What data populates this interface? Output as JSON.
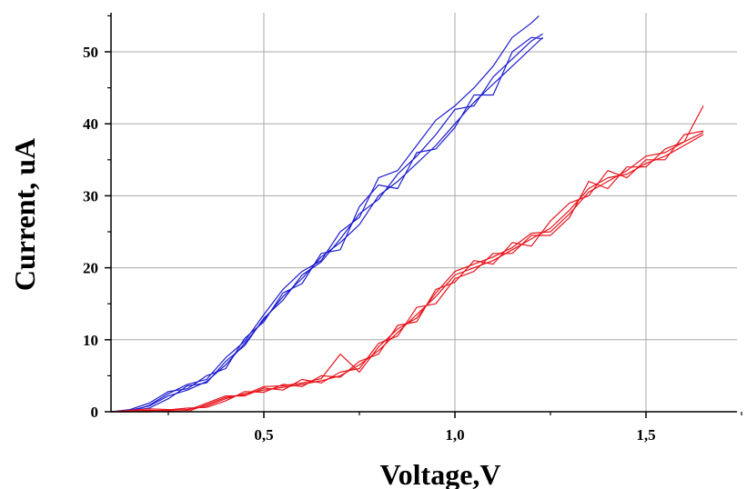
{
  "chart_data": {
    "type": "line",
    "xlabel": "Voltage,V",
    "ylabel": "Current, uA",
    "xlim": [
      0.1,
      1.78
    ],
    "ylim": [
      0,
      55
    ],
    "x_ticks": [
      0.5,
      1.0,
      1.5
    ],
    "x_tick_labels": [
      "0,5",
      "1,0",
      "1,5"
    ],
    "y_ticks": [
      0,
      10,
      20,
      30,
      40,
      50
    ],
    "y_tick_labels": [
      "0",
      "10",
      "20",
      "30",
      "40",
      "50"
    ],
    "grid": true,
    "legend": "none",
    "series_colors": {
      "blue": "#1c1ccf",
      "red": "#e8141c"
    },
    "series": [
      {
        "color": "blue",
        "x": [
          0.1,
          0.15,
          0.2,
          0.25,
          0.3,
          0.35,
          0.4,
          0.45,
          0.5,
          0.55,
          0.6,
          0.65,
          0.7,
          0.75,
          0.8,
          0.85,
          0.9,
          0.95,
          1.0,
          1.05,
          1.1,
          1.15,
          1.2,
          1.23
        ],
        "y": [
          0,
          0.2,
          0.8,
          2.2,
          3.0,
          4.2,
          6.5,
          9.5,
          12.8,
          16.0,
          18.5,
          21.5,
          23.5,
          26.0,
          30.0,
          32.0,
          34.5,
          37.0,
          40.0,
          43.0,
          45.5,
          48.0,
          50.5,
          52.0
        ]
      },
      {
        "color": "blue",
        "x": [
          0.1,
          0.15,
          0.2,
          0.25,
          0.3,
          0.35,
          0.4,
          0.45,
          0.5,
          0.55,
          0.6,
          0.65,
          0.7,
          0.75,
          0.8,
          0.85,
          0.9,
          0.95,
          1.0,
          1.05,
          1.1,
          1.15,
          1.2,
          1.23
        ],
        "y": [
          0,
          0.1,
          0.5,
          1.8,
          3.6,
          4.0,
          7.0,
          9.2,
          13.0,
          15.5,
          19.0,
          20.8,
          24.0,
          27.5,
          29.5,
          33.0,
          35.5,
          38.5,
          42.0,
          42.5,
          46.5,
          49.0,
          51.5,
          52.5
        ]
      },
      {
        "color": "blue",
        "x": [
          0.1,
          0.15,
          0.2,
          0.25,
          0.3,
          0.35,
          0.4,
          0.45,
          0.5,
          0.55,
          0.6,
          0.65,
          0.7,
          0.75,
          0.8,
          0.85,
          0.9,
          0.95,
          1.0,
          1.05,
          1.1,
          1.15,
          1.2,
          1.23
        ],
        "y": [
          0,
          0.3,
          1.2,
          2.8,
          3.2,
          5.0,
          6.0,
          10.2,
          12.5,
          16.5,
          17.8,
          22.0,
          22.5,
          28.5,
          31.5,
          31.0,
          36.0,
          36.5,
          39.5,
          44.0,
          44.0,
          50.0,
          52.0,
          51.8
        ]
      },
      {
        "color": "blue",
        "x": [
          0.1,
          0.15,
          0.2,
          0.25,
          0.3,
          0.35,
          0.4,
          0.45,
          0.5,
          0.55,
          0.6,
          0.65,
          0.7,
          0.75,
          0.8,
          0.85,
          0.9,
          0.95,
          1.0,
          1.05,
          1.1,
          1.15,
          1.2,
          1.22
        ],
        "y": [
          0,
          0.0,
          0.9,
          2.5,
          3.8,
          4.5,
          7.5,
          9.8,
          13.5,
          17.0,
          19.5,
          21.0,
          25.0,
          27.0,
          32.5,
          33.5,
          37.0,
          40.5,
          42.5,
          45.0,
          48.0,
          52.0,
          54.0,
          55.0
        ]
      },
      {
        "color": "red",
        "x": [
          0.1,
          0.2,
          0.3,
          0.35,
          0.4,
          0.45,
          0.5,
          0.55,
          0.6,
          0.65,
          0.7,
          0.75,
          0.8,
          0.85,
          0.9,
          0.95,
          1.0,
          1.05,
          1.1,
          1.15,
          1.2,
          1.25,
          1.3,
          1.35,
          1.4,
          1.45,
          1.5,
          1.55,
          1.6,
          1.65
        ],
        "y": [
          0,
          0.1,
          0.3,
          0.8,
          1.8,
          2.5,
          3.0,
          3.4,
          3.8,
          4.3,
          5.0,
          6.5,
          8.5,
          11.0,
          13.5,
          16.0,
          19.0,
          20.0,
          21.0,
          22.5,
          24.0,
          25.5,
          28.0,
          31.0,
          32.5,
          33.0,
          34.5,
          35.5,
          37.0,
          38.5
        ]
      },
      {
        "color": "red",
        "x": [
          0.1,
          0.2,
          0.3,
          0.35,
          0.4,
          0.45,
          0.5,
          0.55,
          0.6,
          0.65,
          0.7,
          0.75,
          0.8,
          0.85,
          0.9,
          0.95,
          1.0,
          1.05,
          1.1,
          1.15,
          1.2,
          1.25,
          1.3,
          1.35,
          1.4,
          1.45,
          1.5,
          1.55,
          1.6,
          1.65
        ],
        "y": [
          0,
          0.4,
          0.2,
          1.2,
          2.2,
          2.2,
          3.3,
          3.0,
          4.5,
          4.0,
          5.5,
          6.0,
          9.5,
          10.5,
          14.5,
          15.0,
          18.5,
          19.5,
          22.0,
          22.0,
          24.5,
          24.5,
          27.0,
          32.0,
          31.0,
          34.0,
          34.0,
          36.5,
          37.5,
          38.8
        ]
      },
      {
        "color": "red",
        "x": [
          0.1,
          0.2,
          0.3,
          0.35,
          0.4,
          0.45,
          0.5,
          0.55,
          0.6,
          0.65,
          0.7,
          0.75,
          0.8,
          0.85,
          0.9,
          0.95,
          1.0,
          1.05,
          1.1,
          1.15,
          1.2,
          1.25,
          1.3,
          1.35,
          1.4,
          1.45,
          1.5,
          1.55,
          1.6,
          1.65
        ],
        "y": [
          0,
          0.0,
          0.5,
          0.6,
          1.5,
          2.8,
          2.7,
          3.8,
          3.5,
          5.0,
          4.8,
          7.0,
          8.0,
          12.0,
          12.5,
          17.0,
          18.0,
          21.0,
          20.5,
          23.5,
          23.0,
          26.5,
          29.0,
          30.0,
          33.5,
          32.5,
          35.0,
          35.0,
          38.5,
          39.0
        ]
      },
      {
        "color": "red",
        "x": [
          0.1,
          0.2,
          0.3,
          0.35,
          0.4,
          0.45,
          0.5,
          0.55,
          0.6,
          0.65,
          0.7,
          0.75,
          0.8,
          0.85,
          0.9,
          0.95,
          1.0,
          1.05,
          1.1,
          1.15,
          1.2,
          1.25,
          1.3,
          1.35,
          1.4,
          1.45,
          1.5,
          1.55,
          1.6,
          1.65
        ],
        "y": [
          0,
          0.2,
          0.0,
          1.0,
          2.0,
          2.4,
          3.5,
          3.6,
          4.0,
          4.6,
          8.0,
          5.5,
          9.0,
          11.5,
          13.0,
          16.5,
          19.5,
          20.5,
          21.5,
          22.8,
          24.8,
          25.0,
          27.5,
          30.5,
          32.0,
          33.5,
          35.5,
          36.0,
          37.5,
          42.5
        ]
      }
    ]
  }
}
